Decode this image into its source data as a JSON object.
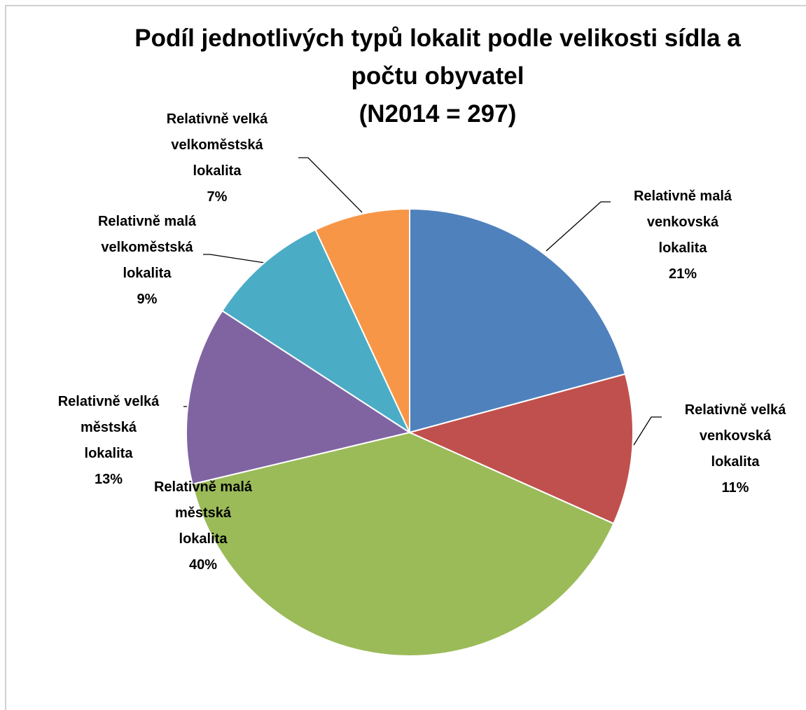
{
  "chart_data": {
    "type": "pie",
    "title": "Podíl jednotlivých typů lokalit podle velikosti sídla a počtu obyvatel",
    "subtitle": "(N2014 = 297)",
    "categories": [
      "Relativně malá venkovská lokalita",
      "Relativně velká venkovská lokalita",
      "Relativně malá městská lokalita",
      "Relativně velká městská lokalita",
      "Relativně malá velkoměstská lokalita",
      "Relativně velká velkoměstská lokalita"
    ],
    "values": [
      21,
      11,
      40,
      13,
      9,
      7
    ],
    "value_labels": [
      "21%",
      "11%",
      "40%",
      "13%",
      "9%",
      "7%"
    ],
    "colors": [
      "#4f81bd",
      "#c0504d",
      "#9bbb59",
      "#8064a2",
      "#4bacc6",
      "#f79646"
    ]
  }
}
